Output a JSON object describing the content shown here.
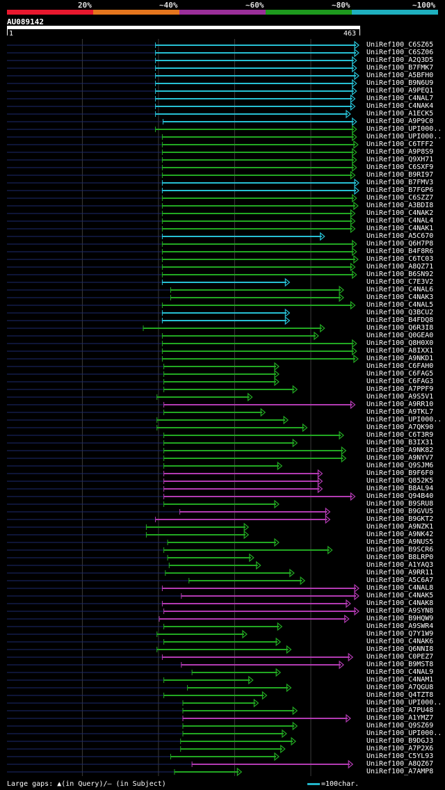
{
  "legend": {
    "segments": [
      {
        "label": "20%",
        "color": "#e8182e"
      },
      {
        "label": "~40%",
        "color": "#e5761e"
      },
      {
        "label": "~60%",
        "color": "#9b2f9a"
      },
      {
        "label": "~80%",
        "color": "#1e9a1e"
      },
      {
        "label": "~100%",
        "color": "#1fb0bf"
      }
    ]
  },
  "query": {
    "id": "AU089142",
    "start": "1",
    "end": "463"
  },
  "identity_colors": {
    "cyan": "#27c0d4",
    "green": "#22a822",
    "purple": "#b23bb2"
  },
  "chart_data": {
    "type": "alignment-hits",
    "query_length": 463,
    "scale_unit": "100char.",
    "hits": [
      {
        "name": "UniRef100_C6SZ65",
        "start": 196,
        "end": 463,
        "identity": "cyan"
      },
      {
        "name": "UniRef100_C6SZ06",
        "start": 196,
        "end": 463,
        "identity": "cyan"
      },
      {
        "name": "UniRef100_A2Q3D5",
        "start": 196,
        "end": 460,
        "identity": "cyan"
      },
      {
        "name": "UniRef100_B7FMK7",
        "start": 196,
        "end": 460,
        "identity": "cyan"
      },
      {
        "name": "UniRef100_A5BFH0",
        "start": 196,
        "end": 463,
        "identity": "cyan"
      },
      {
        "name": "UniRef100_B9N6U9",
        "start": 196,
        "end": 460,
        "identity": "cyan"
      },
      {
        "name": "UniRef100_A9PEQ1",
        "start": 196,
        "end": 460,
        "identity": "cyan"
      },
      {
        "name": "UniRef100_C4NAL7",
        "start": 196,
        "end": 458,
        "identity": "cyan"
      },
      {
        "name": "UniRef100_C4NAK4",
        "start": 196,
        "end": 458,
        "identity": "cyan"
      },
      {
        "name": "UniRef100_A1ECK5",
        "start": 196,
        "end": 452,
        "identity": "cyan"
      },
      {
        "name": "UniRef100_A9P9C0",
        "start": 206,
        "end": 460,
        "identity": "cyan"
      },
      {
        "name": "UniRef100_UPI000..",
        "start": 196,
        "end": 460,
        "identity": "green"
      },
      {
        "name": "UniRef100_UPI000..",
        "start": 205,
        "end": 460,
        "identity": "green"
      },
      {
        "name": "UniRef100_C6TFF2",
        "start": 205,
        "end": 462,
        "identity": "green"
      },
      {
        "name": "UniRef100_A9P8S9",
        "start": 205,
        "end": 460,
        "identity": "green"
      },
      {
        "name": "UniRef100_Q9XH71",
        "start": 205,
        "end": 460,
        "identity": "green"
      },
      {
        "name": "UniRef100_C6SXF9",
        "start": 205,
        "end": 460,
        "identity": "green"
      },
      {
        "name": "UniRef100_B9RI97",
        "start": 205,
        "end": 458,
        "identity": "green"
      },
      {
        "name": "UniRef100_B7FMV3",
        "start": 205,
        "end": 463,
        "identity": "cyan"
      },
      {
        "name": "UniRef100_B7FGP6",
        "start": 205,
        "end": 463,
        "identity": "cyan"
      },
      {
        "name": "UniRef100_C6SZZ7",
        "start": 205,
        "end": 460,
        "identity": "green"
      },
      {
        "name": "UniRef100_A3BDI8",
        "start": 205,
        "end": 462,
        "identity": "green"
      },
      {
        "name": "UniRef100_C4NAK2",
        "start": 205,
        "end": 458,
        "identity": "green"
      },
      {
        "name": "UniRef100_C4NAL4",
        "start": 205,
        "end": 458,
        "identity": "green"
      },
      {
        "name": "UniRef100_C4NAK1",
        "start": 205,
        "end": 458,
        "identity": "green"
      },
      {
        "name": "UniRef100_A5C670",
        "start": 205,
        "end": 418,
        "identity": "cyan"
      },
      {
        "name": "UniRef100_Q6H7P8",
        "start": 205,
        "end": 460,
        "identity": "green"
      },
      {
        "name": "UniRef100_B4F8R6",
        "start": 205,
        "end": 460,
        "identity": "green"
      },
      {
        "name": "UniRef100_C6TC03",
        "start": 205,
        "end": 462,
        "identity": "green"
      },
      {
        "name": "UniRef100_A8QZ71",
        "start": 205,
        "end": 458,
        "identity": "green"
      },
      {
        "name": "UniRef100_B6SN92",
        "start": 205,
        "end": 460,
        "identity": "green"
      },
      {
        "name": "UniRef100_C7E3V2",
        "start": 205,
        "end": 372,
        "identity": "cyan"
      },
      {
        "name": "UniRef100_C4NAL6",
        "start": 216,
        "end": 443,
        "identity": "green"
      },
      {
        "name": "UniRef100_C4NAK3",
        "start": 216,
        "end": 443,
        "identity": "green"
      },
      {
        "name": "UniRef100_C4NAL5",
        "start": 205,
        "end": 458,
        "identity": "green"
      },
      {
        "name": "UniRef100_Q3BCU2",
        "start": 205,
        "end": 372,
        "identity": "cyan"
      },
      {
        "name": "UniRef100_B4FDQ8",
        "start": 205,
        "end": 372,
        "identity": "cyan"
      },
      {
        "name": "UniRef100_Q6R3I8",
        "start": 180,
        "end": 418,
        "identity": "green"
      },
      {
        "name": "UniRef100_Q0GEA0",
        "start": 205,
        "end": 410,
        "identity": "green"
      },
      {
        "name": "UniRef100_Q8H0X0",
        "start": 205,
        "end": 460,
        "identity": "green"
      },
      {
        "name": "UniRef100_A8IXX1",
        "start": 205,
        "end": 460,
        "identity": "green"
      },
      {
        "name": "UniRef100_A9NKD1",
        "start": 205,
        "end": 462,
        "identity": "green"
      },
      {
        "name": "UniRef100_C6FAH0",
        "start": 207,
        "end": 358,
        "identity": "green"
      },
      {
        "name": "UniRef100_C6FAG5",
        "start": 207,
        "end": 358,
        "identity": "green"
      },
      {
        "name": "UniRef100_C6FAG3",
        "start": 207,
        "end": 358,
        "identity": "green"
      },
      {
        "name": "UniRef100_A7PPF9",
        "start": 207,
        "end": 382,
        "identity": "green"
      },
      {
        "name": "UniRef100_A9S5V1",
        "start": 198,
        "end": 323,
        "identity": "green"
      },
      {
        "name": "UniRef100_A9RR10",
        "start": 207,
        "end": 458,
        "identity": "purple"
      },
      {
        "name": "UniRef100_A9TKL7",
        "start": 207,
        "end": 340,
        "identity": "green"
      },
      {
        "name": "UniRef100_UPI000..",
        "start": 198,
        "end": 370,
        "identity": "green"
      },
      {
        "name": "UniRef100_A7QK90",
        "start": 198,
        "end": 395,
        "identity": "green"
      },
      {
        "name": "UniRef100_C6T3R9",
        "start": 207,
        "end": 443,
        "identity": "green"
      },
      {
        "name": "UniRef100_B3IX31",
        "start": 207,
        "end": 382,
        "identity": "green"
      },
      {
        "name": "UniRef100_A9NK82",
        "start": 207,
        "end": 446,
        "identity": "green"
      },
      {
        "name": "UniRef100_A9NYV7",
        "start": 207,
        "end": 446,
        "identity": "green"
      },
      {
        "name": "UniRef100_Q9SJM6",
        "start": 207,
        "end": 362,
        "identity": "green"
      },
      {
        "name": "UniRef100_B9F6F0",
        "start": 207,
        "end": 415,
        "identity": "purple"
      },
      {
        "name": "UniRef100_Q852K5",
        "start": 207,
        "end": 415,
        "identity": "purple"
      },
      {
        "name": "UniRef100_B8AL94",
        "start": 207,
        "end": 415,
        "identity": "purple"
      },
      {
        "name": "UniRef100_Q94B40",
        "start": 207,
        "end": 458,
        "identity": "purple"
      },
      {
        "name": "UniRef100_B9SRU8",
        "start": 207,
        "end": 358,
        "identity": "green"
      },
      {
        "name": "UniRef100_B9GVU5",
        "start": 228,
        "end": 425,
        "identity": "purple"
      },
      {
        "name": "UniRef100_B9GKT2",
        "start": 196,
        "end": 425,
        "identity": "purple"
      },
      {
        "name": "UniRef100_A9NZK1",
        "start": 184,
        "end": 318,
        "identity": "green"
      },
      {
        "name": "UniRef100_A9NK42",
        "start": 184,
        "end": 318,
        "identity": "green"
      },
      {
        "name": "UniRef100_A9NUS5",
        "start": 212,
        "end": 358,
        "identity": "green"
      },
      {
        "name": "UniRef100_B9SCR6",
        "start": 207,
        "end": 428,
        "identity": "green"
      },
      {
        "name": "UniRef100_B8LRP0",
        "start": 212,
        "end": 325,
        "identity": "green"
      },
      {
        "name": "UniRef100_A1YAQ3",
        "start": 214,
        "end": 334,
        "identity": "green"
      },
      {
        "name": "UniRef100_A9RR11",
        "start": 209,
        "end": 378,
        "identity": "green"
      },
      {
        "name": "UniRef100_A5C6A7",
        "start": 240,
        "end": 392,
        "identity": "green"
      },
      {
        "name": "UniRef100_C4NAL8",
        "start": 205,
        "end": 463,
        "identity": "purple"
      },
      {
        "name": "UniRef100_C4NAK5",
        "start": 230,
        "end": 463,
        "identity": "purple"
      },
      {
        "name": "UniRef100_C4NAK8",
        "start": 205,
        "end": 452,
        "identity": "purple"
      },
      {
        "name": "UniRef100_A9SYN8",
        "start": 207,
        "end": 463,
        "identity": "purple"
      },
      {
        "name": "UniRef100_B9HQW9",
        "start": 201,
        "end": 450,
        "identity": "purple"
      },
      {
        "name": "UniRef100_A9SWR4",
        "start": 207,
        "end": 362,
        "identity": "green"
      },
      {
        "name": "UniRef100_Q7Y1W9",
        "start": 198,
        "end": 316,
        "identity": "green"
      },
      {
        "name": "UniRef100_C4NAK6",
        "start": 207,
        "end": 360,
        "identity": "green"
      },
      {
        "name": "UniRef100_Q6NNI8",
        "start": 198,
        "end": 374,
        "identity": "green"
      },
      {
        "name": "UniRef100_C0PEZ7",
        "start": 205,
        "end": 455,
        "identity": "purple"
      },
      {
        "name": "UniRef100_B9MST8",
        "start": 230,
        "end": 443,
        "identity": "purple"
      },
      {
        "name": "UniRef100_C4NAL9",
        "start": 244,
        "end": 360,
        "identity": "green"
      },
      {
        "name": "UniRef100_C4NAM1",
        "start": 207,
        "end": 324,
        "identity": "green"
      },
      {
        "name": "UniRef100_A7QGU8",
        "start": 238,
        "end": 374,
        "identity": "green"
      },
      {
        "name": "UniRef100_Q4TZT8",
        "start": 207,
        "end": 342,
        "identity": "green"
      },
      {
        "name": "UniRef100_UPI000..",
        "start": 232,
        "end": 331,
        "identity": "green"
      },
      {
        "name": "UniRef100_A7PU48",
        "start": 232,
        "end": 382,
        "identity": "green"
      },
      {
        "name": "UniRef100_A1YMZ7",
        "start": 232,
        "end": 452,
        "identity": "purple"
      },
      {
        "name": "UniRef100_Q9SZ69",
        "start": 232,
        "end": 382,
        "identity": "green"
      },
      {
        "name": "UniRef100_UPI000..",
        "start": 232,
        "end": 368,
        "identity": "green"
      },
      {
        "name": "UniRef100_B9DGJ3",
        "start": 229,
        "end": 380,
        "identity": "green"
      },
      {
        "name": "UniRef100_A7P2X6",
        "start": 229,
        "end": 366,
        "identity": "green"
      },
      {
        "name": "UniRef100_C5YL93",
        "start": 216,
        "end": 358,
        "identity": "green"
      },
      {
        "name": "UniRef100_A8QZ67",
        "start": 244,
        "end": 455,
        "identity": "purple"
      },
      {
        "name": "UniRef100_A7AMP8",
        "start": 221,
        "end": 309,
        "identity": "green"
      }
    ]
  },
  "footer": {
    "gap_legend": "Large gaps: ▲(in Query)/— (in Subject)",
    "scale_legend": "=100char."
  }
}
